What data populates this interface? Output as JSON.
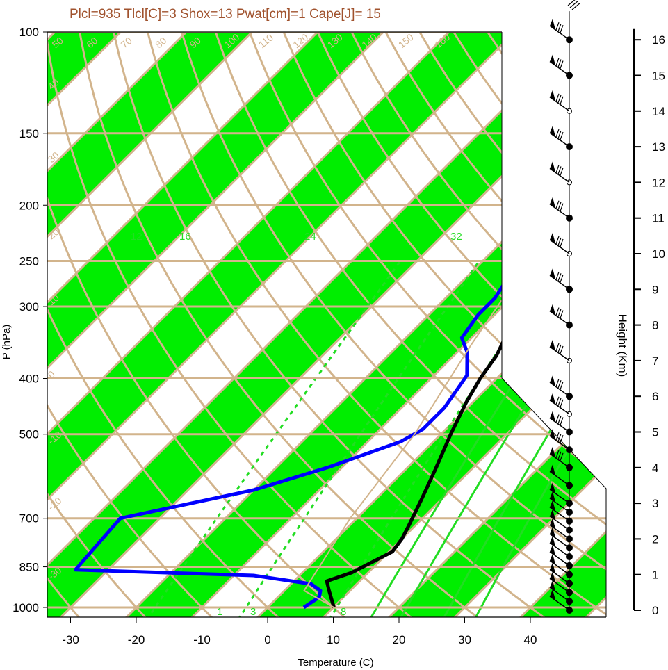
{
  "chart_data": {
    "type": "line",
    "title": "Plcl=935 Tlcl[C]=3 Shox=13 Pwat[cm]=1 Cape[J]= 15",
    "xlabel": "Temperature (C)",
    "ylabel": "P (hPa)",
    "y2label": "Height (Km)",
    "x_ticks": [
      "-30",
      "-20",
      "-10",
      "0",
      "10",
      "20",
      "30",
      "40"
    ],
    "pressure_ticks": [
      "100",
      "150",
      "200",
      "250",
      "300",
      "400",
      "500",
      "700",
      "850",
      "1000"
    ],
    "height_ticks": [
      "0",
      "1",
      "2",
      "3",
      "4",
      "5",
      "6",
      "7",
      "8",
      "9",
      "10",
      "11",
      "12",
      "13",
      "14",
      "15",
      "16"
    ],
    "isotherm_labels": [
      "50",
      "60",
      "70",
      "80",
      "90",
      "100",
      "110",
      "120",
      "130",
      "140",
      "150",
      "160"
    ],
    "theta_labels_left": [
      "40",
      "30",
      "20",
      "10",
      "0",
      "-10",
      "-20",
      "-30"
    ],
    "theta_labels_right": [
      "30",
      "20",
      "10",
      "0",
      "10",
      "20",
      "30"
    ],
    "mixing_ratio_labels": [
      "12",
      "16",
      "24",
      "32"
    ],
    "mixing_ratio_bottom_labels": [
      "1",
      "3",
      "8"
    ],
    "series": [
      {
        "name": "Temperature",
        "color": "#000000",
        "points": [
          [
            10.1,
            1000
          ],
          [
            6.8,
            935
          ],
          [
            5.0,
            900
          ],
          [
            7.5,
            870
          ],
          [
            10.5,
            800
          ],
          [
            10.0,
            760
          ],
          [
            9.0,
            720
          ],
          [
            7.0,
            650
          ],
          [
            4.5,
            575
          ],
          [
            1.5,
            500
          ],
          [
            -1.0,
            440
          ],
          [
            -2.5,
            400
          ],
          [
            -3.5,
            365
          ],
          [
            -5.5,
            330
          ],
          [
            -8.0,
            300
          ],
          [
            -10.5,
            270
          ],
          [
            -12.0,
            250
          ],
          [
            -11.5,
            220
          ],
          [
            -11.0,
            205
          ],
          [
            -9.5,
            190
          ],
          [
            -6.5,
            170
          ],
          [
            -4.0,
            160
          ],
          [
            0.5,
            148
          ],
          [
            9.0,
            135
          ],
          [
            14.5,
            120
          ],
          [
            16.5,
            110
          ],
          [
            15.5,
            102
          ],
          [
            15.0,
            100
          ]
        ]
      },
      {
        "name": "Dew point",
        "color": "#0000ff",
        "points": [
          [
            5.5,
            1000
          ],
          [
            6.3,
            960
          ],
          [
            5.5,
            935
          ],
          [
            3.0,
            910
          ],
          [
            -7.0,
            880
          ],
          [
            -35.0,
            860
          ],
          [
            -36.0,
            700
          ],
          [
            -20.0,
            625
          ],
          [
            -12.0,
            570
          ],
          [
            -5.0,
            515
          ],
          [
            -3.5,
            490
          ],
          [
            -3.5,
            450
          ],
          [
            -5.0,
            395
          ],
          [
            -8.5,
            360
          ],
          [
            -11.5,
            340
          ],
          [
            -12.5,
            310
          ],
          [
            -12.5,
            290
          ],
          [
            -14.0,
            260
          ],
          [
            -15.0,
            230
          ],
          [
            -15.0,
            210
          ],
          [
            -14.7,
            185
          ],
          [
            -15.0,
            165
          ],
          [
            -17.0,
            145
          ],
          [
            -7.0,
            100
          ]
        ]
      },
      {
        "name": "Parcel",
        "color": "#d2b48c",
        "points": [
          [
            10.1,
            1000
          ],
          [
            3.0,
            935
          ],
          [
            -1.0,
            700
          ],
          [
            -4.0,
            500
          ],
          [
            -9.0,
            350
          ],
          [
            -14.0,
            230
          ],
          [
            1.0,
            148
          ],
          [
            14.0,
            120
          ]
        ]
      }
    ],
    "wind_levels_km": [
      0,
      0.25,
      0.5,
      0.75,
      1,
      1.25,
      1.5,
      1.75,
      2,
      2.25,
      2.5,
      2.75,
      3,
      3.5,
      4,
      4.5,
      5,
      5.5,
      6,
      7,
      8,
      9,
      10,
      11,
      12,
      13,
      14,
      15,
      16
    ]
  }
}
